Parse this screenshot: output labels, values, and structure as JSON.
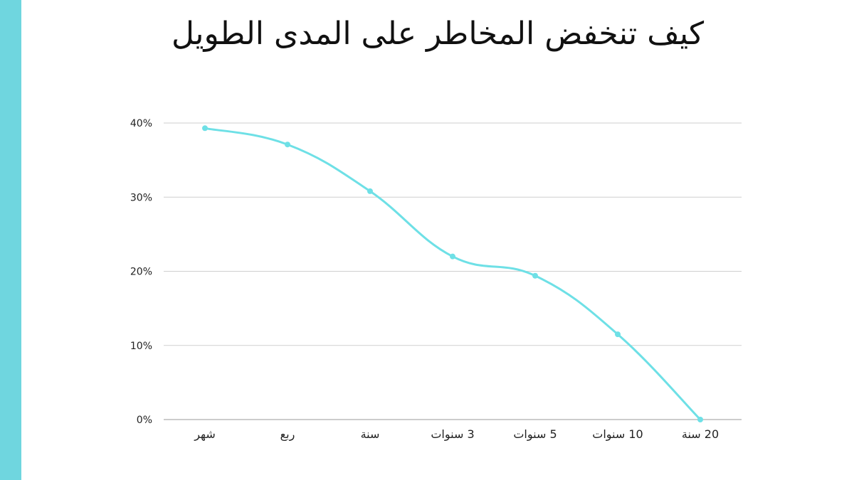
{
  "page": {
    "title": "كيف تنخفض المخاطر على المدى الطويل",
    "accent_color": "#6fd6df",
    "line_color": "#6ee0e6"
  },
  "chart_data": {
    "type": "line",
    "title": "كيف تنخفض المخاطر على المدى الطويل",
    "categories": [
      "شهر",
      "ربع",
      "سنة",
      "3 سنوات",
      "5 سنوات",
      "10 سنوات",
      "20 سنة"
    ],
    "series": [
      {
        "values": [
          39.3,
          37.1,
          30.8,
          22.0,
          19.4,
          11.5,
          0.0
        ]
      }
    ],
    "ylim": [
      0,
      40
    ],
    "y_ticks": [
      "0%",
      "10%",
      "20%",
      "30%",
      "40%"
    ],
    "xlabel": "",
    "ylabel": "",
    "grid": true,
    "smooth": true
  }
}
